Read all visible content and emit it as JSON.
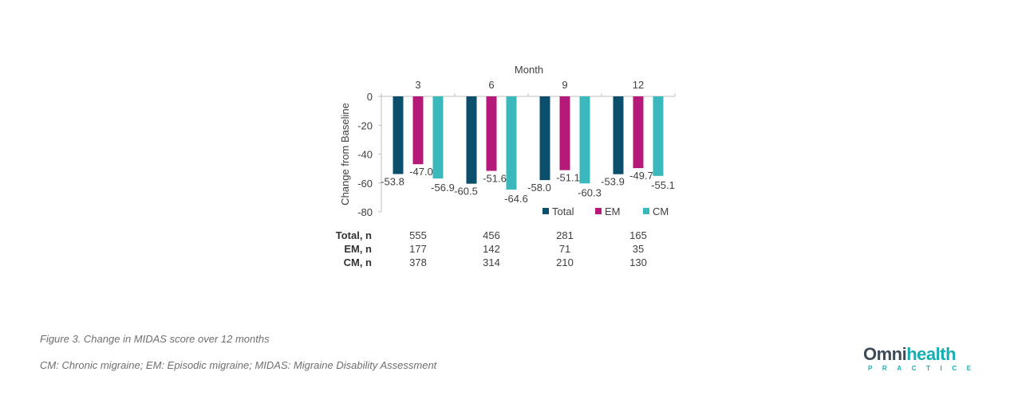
{
  "chart_data": {
    "type": "bar",
    "x_axis_title": "Month",
    "ylabel": "Change from Baseline",
    "categories": [
      "3",
      "6",
      "9",
      "12"
    ],
    "ylim": [
      -80,
      0
    ],
    "yticks": [
      0,
      -20,
      -40,
      -60,
      -80
    ],
    "x_axis_position": "top",
    "grid": false,
    "legend_position": "bottom-right",
    "series": [
      {
        "name": "Total",
        "color": "#0b4f6c",
        "values": [
          -53.8,
          -60.5,
          -58.0,
          -53.9
        ],
        "labels": [
          "-53.8",
          "-60.5",
          "-58.0",
          "-53.9"
        ]
      },
      {
        "name": "EM",
        "color": "#b5197a",
        "values": [
          -47.0,
          -51.6,
          -51.1,
          -49.7
        ],
        "labels": [
          "-47.0",
          "-51.6",
          "-51.1",
          "-49.7"
        ]
      },
      {
        "name": "CM",
        "color": "#3bb8bc",
        "values": [
          -56.9,
          -64.6,
          -60.3,
          -55.1
        ],
        "labels": [
          "-56.9",
          "-64.6",
          "-60.3",
          "-55.1"
        ]
      }
    ],
    "table": {
      "rows": [
        {
          "label": "Total, n",
          "values": [
            "555",
            "456",
            "281",
            "165"
          ]
        },
        {
          "label": "EM, n",
          "values": [
            "177",
            "142",
            "71",
            "35"
          ]
        },
        {
          "label": "CM, n",
          "values": [
            "378",
            "314",
            "210",
            "130"
          ]
        }
      ]
    }
  },
  "captions": {
    "figure": "Figure 3. Change in MIDAS score over 12 months",
    "abbreviations": "CM: Chronic migraine; EM: Episodic migraine; MIDAS: Migraine Disability Assessment"
  },
  "logo": {
    "word_main": "Omni",
    "word_accent": "health",
    "tagline": "PRACTICE"
  }
}
